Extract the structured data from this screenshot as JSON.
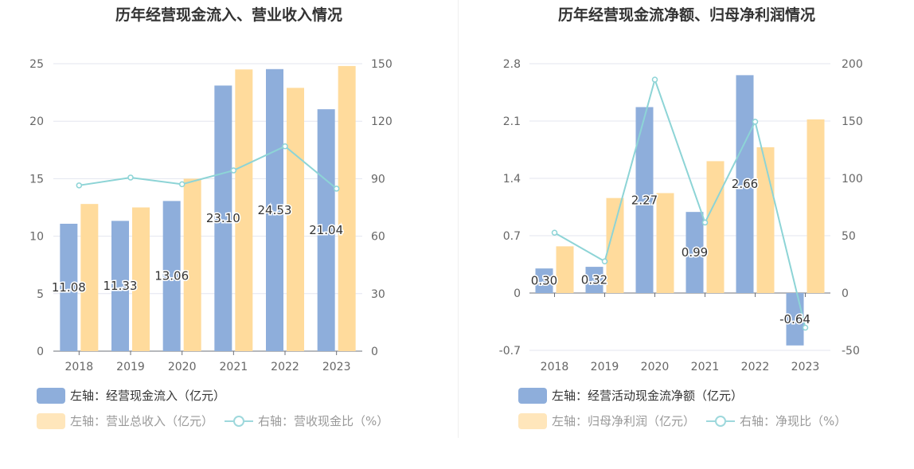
{
  "charts": [
    {
      "title": "历年经营现金流入、营业收入情况",
      "legend": {
        "bar1": "左轴：经营现金流入（亿元）",
        "bar2": "左轴：营业总收入（亿元）",
        "line": "右轴：营收现金比（%）"
      }
    },
    {
      "title": "历年经营现金流净额、归母净利润情况",
      "legend": {
        "bar1": "左轴：经营活动现金流净额（亿元）",
        "bar2": "左轴：归母净利润（亿元）",
        "line": "右轴：净现比（%）"
      }
    }
  ],
  "colors": {
    "bar1": "#8eaedb",
    "bar2": "#ffdb9c",
    "line": "#8dd4d6",
    "grid": "#e3e6ef",
    "axisText": "#666666"
  },
  "chart_data": [
    {
      "type": "bar",
      "title": "历年经营现金流入、营业收入情况",
      "categories": [
        "2018",
        "2019",
        "2020",
        "2021",
        "2022",
        "2023"
      ],
      "series": [
        {
          "name": "左轴：经营现金流入（亿元）",
          "axis": "left",
          "values": [
            11.08,
            11.33,
            13.06,
            23.1,
            24.53,
            21.04
          ],
          "labels": [
            "11.08",
            "11.33",
            "13.06",
            "23.10",
            "24.53",
            "21.04"
          ]
        },
        {
          "name": "左轴：营业总收入（亿元）",
          "axis": "left",
          "values": [
            12.8,
            12.5,
            15.0,
            24.5,
            22.9,
            24.8
          ]
        },
        {
          "name": "右轴：营收现金比（%）",
          "axis": "right",
          "type": "line",
          "values": [
            86.5,
            90.6,
            87.1,
            94.3,
            106.9,
            84.8
          ]
        }
      ],
      "yLeft": {
        "min": 0,
        "max": 25,
        "ticks": [
          "0",
          "5",
          "10",
          "15",
          "20",
          "25"
        ]
      },
      "yRight": {
        "min": 0,
        "max": 150,
        "ticks": [
          "0",
          "30",
          "60",
          "90",
          "120",
          "150"
        ]
      }
    },
    {
      "type": "bar",
      "title": "历年经营现金流净额、归母净利润情况",
      "categories": [
        "2018",
        "2019",
        "2020",
        "2021",
        "2022",
        "2023"
      ],
      "series": [
        {
          "name": "左轴：经营活动现金流净额（亿元）",
          "axis": "left",
          "values": [
            0.3,
            0.32,
            2.27,
            0.99,
            2.66,
            -0.64
          ],
          "labels": [
            "0.30",
            "0.32",
            "2.27",
            "0.99",
            "2.66",
            "-0.64"
          ]
        },
        {
          "name": "左轴：归母净利润（亿元）",
          "axis": "left",
          "values": [
            0.57,
            1.16,
            1.22,
            1.61,
            1.78,
            2.12
          ]
        },
        {
          "name": "右轴：净现比（%）",
          "axis": "right",
          "type": "line",
          "values": [
            52.6,
            27.6,
            186.1,
            61.5,
            149.4,
            -30.2
          ]
        }
      ],
      "yLeft": {
        "min": -0.7,
        "max": 2.8,
        "ticks": [
          "-0.7",
          "0",
          "0.7",
          "1.4",
          "2.1",
          "2.8"
        ]
      },
      "yRight": {
        "min": -50,
        "max": 200,
        "ticks": [
          "-50",
          "0",
          "50",
          "100",
          "150",
          "200"
        ]
      }
    }
  ]
}
